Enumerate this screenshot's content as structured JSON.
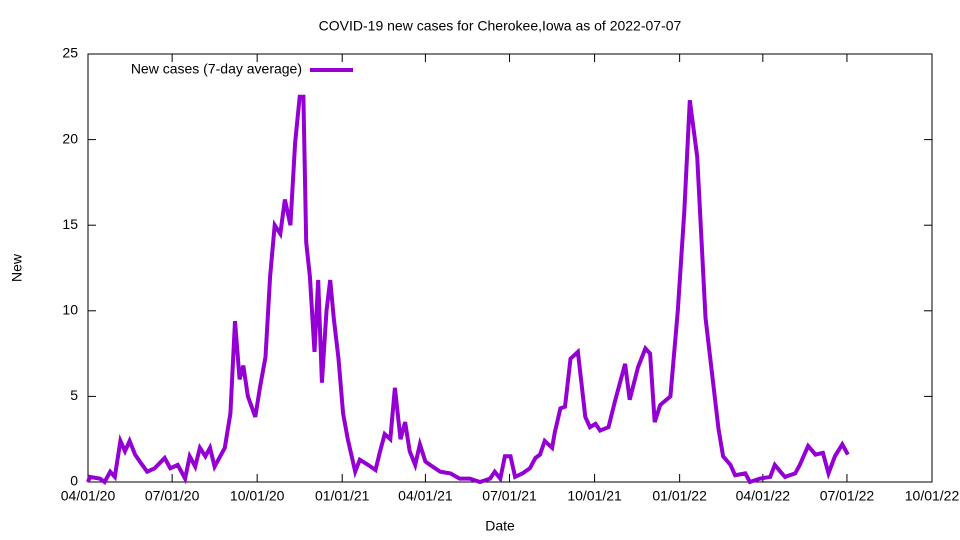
{
  "chart_data": {
    "type": "line",
    "title": "COVID-19 new cases for Cherokee,Iowa as of 2022-07-07",
    "x_label": "Date",
    "y_label": "New",
    "legend": "top left",
    "grid": false,
    "x": [
      "2020-04-01",
      "2020-04-03",
      "2020-04-14",
      "2020-04-19",
      "2020-04-25",
      "2020-04-30",
      "2020-05-06",
      "2020-05-11",
      "2020-05-16",
      "2020-05-22",
      "2020-05-27",
      "2020-06-04",
      "2020-06-12",
      "2020-06-23",
      "2020-06-29",
      "2020-07-07",
      "2020-07-15",
      "2020-07-20",
      "2020-07-26",
      "2020-07-31",
      "2020-08-06",
      "2020-08-11",
      "2020-08-16",
      "2020-08-22",
      "2020-08-27",
      "2020-09-02",
      "2020-09-07",
      "2020-09-12",
      "2020-09-16",
      "2020-09-21",
      "2020-09-29",
      "2020-10-04",
      "2020-10-10",
      "2020-10-15",
      "2020-10-20",
      "2020-10-26",
      "2020-10-31",
      "2020-11-06",
      "2020-11-11",
      "2020-11-16",
      "2020-11-20",
      "2020-11-23",
      "2020-11-27",
      "2020-12-02",
      "2020-12-06",
      "2020-12-10",
      "2020-12-15",
      "2020-12-19",
      "2020-12-23",
      "2020-12-28",
      "2021-01-02",
      "2021-01-07",
      "2021-01-15",
      "2021-01-20",
      "2021-01-29",
      "2021-02-06",
      "2021-02-11",
      "2021-02-16",
      "2021-02-22",
      "2021-02-27",
      "2021-03-05",
      "2021-03-10",
      "2021-03-15",
      "2021-03-21",
      "2021-03-26",
      "2021-04-01",
      "2021-04-06",
      "2021-04-17",
      "2021-04-28",
      "2021-05-08",
      "2021-05-19",
      "2021-05-30",
      "2021-06-10",
      "2021-06-15",
      "2021-06-21",
      "2021-06-26",
      "2021-07-02",
      "2021-07-07",
      "2021-07-15",
      "2021-07-23",
      "2021-07-29",
      "2021-08-03",
      "2021-08-08",
      "2021-08-16",
      "2021-08-19",
      "2021-08-25",
      "2021-08-30",
      "2021-09-05",
      "2021-09-13",
      "2021-09-21",
      "2021-09-26",
      "2021-10-02",
      "2021-10-07",
      "2021-10-16",
      "2021-10-23",
      "2021-11-03",
      "2021-11-08",
      "2021-11-17",
      "2021-11-25",
      "2021-11-30",
      "2021-12-05",
      "2021-12-11",
      "2021-12-22",
      "2021-12-30",
      "2022-01-06",
      "2022-01-12",
      "2022-01-20",
      "2022-01-29",
      "2022-02-03",
      "2022-02-12",
      "2022-02-17",
      "2022-02-25",
      "2022-03-02",
      "2022-03-13",
      "2022-03-18",
      "2022-03-29",
      "2022-04-09",
      "2022-04-14",
      "2022-04-20",
      "2022-04-25",
      "2022-05-06",
      "2022-05-11",
      "2022-05-20",
      "2022-05-28",
      "2022-06-05",
      "2022-06-11",
      "2022-06-18",
      "2022-06-26",
      "2022-07-02"
    ],
    "series": [
      {
        "name": "New cases (7-day average)",
        "color": "#9400d3",
        "values": [
          0,
          0.3,
          0.2,
          0,
          0.6,
          0.3,
          2.4,
          1.8,
          2.4,
          1.6,
          1.2,
          0.6,
          0.8,
          1.4,
          0.8,
          1.0,
          0.2,
          1.5,
          0.9,
          2.0,
          1.5,
          2.0,
          0.9,
          1.5,
          2.0,
          4.0,
          9.4,
          6.0,
          6.8,
          5.0,
          3.8,
          5.5,
          7.3,
          12,
          15,
          14.5,
          16.5,
          15,
          19.8,
          22.5,
          22.5,
          14,
          12,
          7.6,
          11.8,
          5.8,
          10,
          11.8,
          9.5,
          7.2,
          4,
          2.5,
          0.6,
          1.3,
          1.0,
          0.7,
          1.8,
          2.8,
          2.5,
          5.5,
          2.5,
          3.5,
          1.8,
          1.0,
          2.2,
          1.2,
          1.0,
          0.6,
          0.5,
          0.2,
          0.2,
          0,
          0.2,
          0.6,
          0.2,
          1.5,
          1.5,
          0.3,
          0.5,
          0.8,
          1.4,
          1.6,
          2.4,
          2.0,
          2.9,
          4.3,
          4.4,
          7.2,
          7.6,
          3.8,
          3.2,
          3.4,
          3.0,
          3.2,
          4.7,
          6.9,
          4.8,
          6.7,
          7.8,
          7.5,
          3.5,
          4.5,
          5.0,
          10,
          15.8,
          22.3,
          19,
          9.6,
          7.3,
          3.1,
          1.5,
          1.0,
          0.4,
          0.5,
          0,
          0.2,
          0.3,
          1.0,
          0.6,
          0.3,
          0.5,
          1.0,
          2.1,
          1.6,
          1.7,
          0.5,
          1.5,
          2.2,
          1.6
        ]
      }
    ],
    "xlim": [
      "2020-04-01",
      "2022-10-01"
    ],
    "xticks": [
      {
        "value": "2020-04-01",
        "label": "04/01/20"
      },
      {
        "value": "2020-07-01",
        "label": "07/01/20"
      },
      {
        "value": "2020-10-01",
        "label": "10/01/20"
      },
      {
        "value": "2021-01-01",
        "label": "01/01/21"
      },
      {
        "value": "2021-04-01",
        "label": "04/01/21"
      },
      {
        "value": "2021-07-01",
        "label": "07/01/21"
      },
      {
        "value": "2021-10-01",
        "label": "10/01/21"
      },
      {
        "value": "2022-01-01",
        "label": "01/01/22"
      },
      {
        "value": "2022-04-01",
        "label": "04/01/22"
      },
      {
        "value": "2022-07-01",
        "label": "07/01/22"
      },
      {
        "value": "2022-10-01",
        "label": "10/01/22"
      }
    ],
    "ylim": [
      0,
      25
    ],
    "yticks": [
      0,
      5,
      10,
      15,
      20,
      25
    ]
  }
}
